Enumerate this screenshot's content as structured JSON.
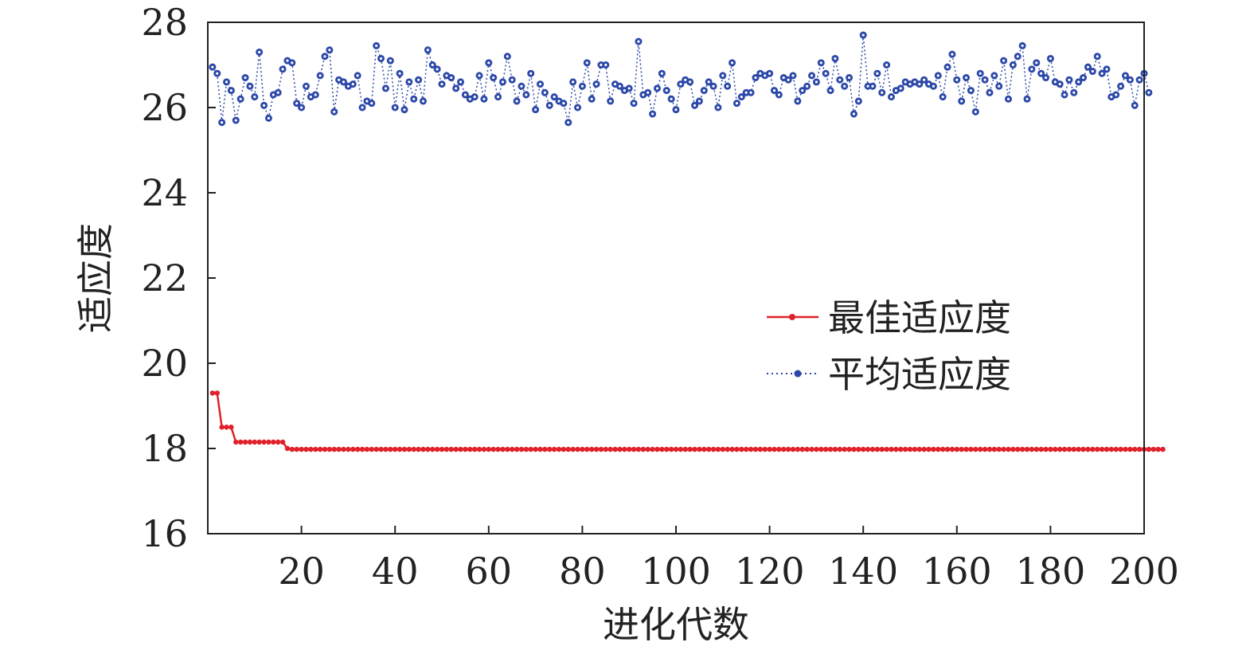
{
  "chart_data": {
    "type": "line",
    "xlabel": "进化代数",
    "ylabel": "适应度",
    "xlim": [
      0,
      200
    ],
    "ylim": [
      16,
      28
    ],
    "xticks": [
      "20",
      "40",
      "60",
      "80",
      "100",
      "120",
      "140",
      "160",
      "180",
      "200"
    ],
    "yticks": [
      "16",
      "18",
      "20",
      "22",
      "24",
      "26",
      "28"
    ],
    "grid": false,
    "legend_position": "center-right",
    "series": [
      {
        "name": "最佳适应度",
        "color": "#e0202a",
        "style": "solid",
        "marker": "dot",
        "x_start": 1,
        "values": [
          19.3,
          19.3,
          18.5,
          18.5,
          18.5,
          18.15,
          18.15,
          18.15,
          18.15,
          18.15,
          18.15,
          18.15,
          18.15,
          18.15,
          18.15,
          18.15,
          18.0,
          17.98,
          17.98,
          17.98,
          17.98,
          17.98,
          17.98,
          17.98,
          17.98,
          17.98,
          17.98,
          17.98,
          17.98,
          17.98,
          17.98,
          17.98,
          17.98,
          17.98,
          17.98,
          17.98,
          17.98,
          17.98,
          17.98,
          17.98,
          17.98,
          17.98,
          17.98,
          17.98,
          17.98,
          17.98,
          17.98,
          17.98,
          17.98,
          17.98,
          17.98,
          17.98,
          17.98,
          17.98,
          17.98,
          17.98,
          17.98,
          17.98,
          17.98,
          17.98,
          17.98,
          17.98,
          17.98,
          17.98,
          17.98,
          17.98,
          17.98,
          17.98,
          17.98,
          17.98,
          17.98,
          17.98,
          17.98,
          17.98,
          17.98,
          17.98,
          17.98,
          17.98,
          17.98,
          17.98,
          17.98,
          17.98,
          17.98,
          17.98,
          17.98,
          17.98,
          17.98,
          17.98,
          17.98,
          17.98,
          17.98,
          17.98,
          17.98,
          17.98,
          17.98,
          17.98,
          17.98,
          17.98,
          17.98,
          17.98,
          17.98,
          17.98,
          17.98,
          17.98,
          17.98,
          17.98,
          17.98,
          17.98,
          17.98,
          17.98,
          17.98,
          17.98,
          17.98,
          17.98,
          17.98,
          17.98,
          17.98,
          17.98,
          17.98,
          17.98,
          17.98,
          17.98,
          17.98,
          17.98,
          17.98,
          17.98,
          17.98,
          17.98,
          17.98,
          17.98,
          17.98,
          17.98,
          17.98,
          17.98,
          17.98,
          17.98,
          17.98,
          17.98,
          17.98,
          17.98,
          17.98,
          17.98,
          17.98,
          17.98,
          17.98,
          17.98,
          17.98,
          17.98,
          17.98,
          17.98,
          17.98,
          17.98,
          17.98,
          17.98,
          17.98,
          17.98,
          17.98,
          17.98,
          17.98,
          17.98,
          17.98,
          17.98,
          17.98,
          17.98,
          17.98,
          17.98,
          17.98,
          17.98,
          17.98,
          17.98,
          17.98,
          17.98,
          17.98,
          17.98,
          17.98,
          17.98,
          17.98,
          17.98,
          17.98,
          17.98,
          17.98,
          17.98,
          17.98,
          17.98,
          17.98,
          17.98,
          17.98,
          17.98,
          17.98,
          17.98,
          17.98,
          17.98,
          17.98,
          17.98,
          17.98,
          17.98,
          17.98,
          17.98,
          17.98,
          17.98,
          17.98,
          17.98,
          17.98,
          17.98
        ]
      },
      {
        "name": "平均适应度",
        "color": "#2b47a8",
        "style": "dotted",
        "marker": "circle",
        "x_start": 1,
        "values": [
          26.95,
          26.8,
          25.65,
          26.6,
          26.4,
          25.7,
          26.2,
          26.7,
          26.5,
          26.25,
          27.3,
          26.05,
          25.75,
          26.3,
          26.35,
          26.9,
          27.1,
          27.05,
          26.1,
          26.0,
          26.5,
          26.25,
          26.3,
          26.75,
          27.2,
          27.35,
          25.9,
          26.65,
          26.6,
          26.5,
          26.55,
          26.75,
          26.0,
          26.15,
          26.1,
          27.45,
          27.15,
          26.45,
          27.1,
          26.0,
          26.8,
          25.95,
          26.6,
          26.2,
          26.65,
          26.15,
          27.35,
          27.0,
          26.9,
          26.55,
          26.75,
          26.7,
          26.45,
          26.6,
          26.3,
          26.2,
          26.25,
          26.75,
          26.2,
          27.05,
          26.7,
          26.25,
          26.6,
          27.2,
          26.65,
          26.15,
          26.5,
          26.3,
          26.8,
          25.95,
          26.55,
          26.35,
          26.05,
          26.25,
          26.15,
          26.1,
          25.65,
          26.6,
          26.0,
          26.5,
          27.05,
          26.2,
          26.55,
          27.0,
          27.0,
          26.15,
          26.55,
          26.5,
          26.4,
          26.45,
          26.1,
          27.55,
          26.3,
          26.35,
          25.85,
          26.45,
          26.8,
          26.4,
          26.2,
          25.95,
          26.55,
          26.65,
          26.6,
          26.05,
          26.15,
          26.4,
          26.6,
          26.5,
          26.0,
          26.75,
          26.5,
          27.05,
          26.1,
          26.25,
          26.35,
          26.35,
          26.7,
          26.8,
          26.75,
          26.8,
          26.4,
          26.3,
          26.7,
          26.65,
          26.75,
          26.15,
          26.4,
          26.5,
          26.75,
          26.6,
          27.05,
          26.8,
          26.4,
          27.15,
          26.65,
          26.5,
          26.7,
          25.85,
          26.15,
          27.7,
          26.5,
          26.5,
          26.8,
          26.35,
          27.0,
          26.25,
          26.4,
          26.45,
          26.6,
          26.55,
          26.6,
          26.55,
          26.65,
          26.55,
          26.5,
          26.75,
          26.25,
          26.95,
          27.25,
          26.65,
          26.15,
          26.7,
          26.4,
          25.9,
          26.8,
          26.65,
          26.35,
          26.75,
          26.5,
          27.1,
          26.2,
          27.0,
          27.2,
          27.45,
          26.2,
          26.9,
          27.05,
          26.8,
          26.7,
          27.15,
          26.6,
          26.55,
          26.3,
          26.65,
          26.35,
          26.6,
          26.7,
          26.95,
          26.85,
          27.2,
          26.8,
          26.9,
          26.25,
          26.3,
          26.5,
          26.75,
          26.65,
          26.05,
          26.65,
          26.8,
          26.35
        ]
      }
    ]
  }
}
